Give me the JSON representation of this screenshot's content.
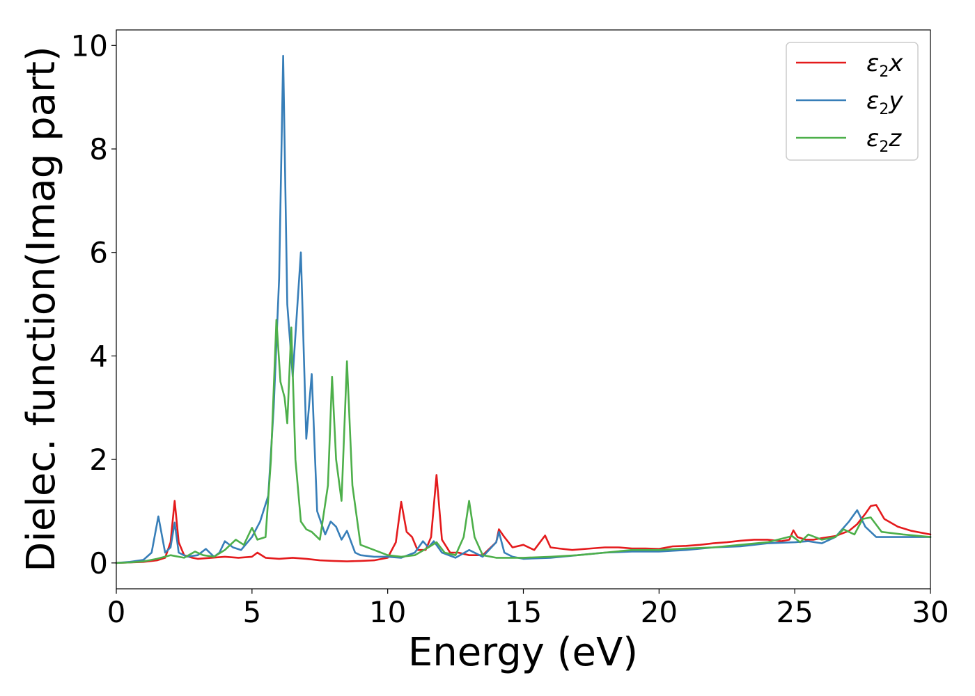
{
  "chart_data": {
    "type": "line",
    "title": "",
    "xlabel": "Energy (eV)",
    "ylabel": "Dielec. function(Imag part)",
    "xlim": [
      0,
      30
    ],
    "ylim": [
      -0.5,
      10.3
    ],
    "xticks": [
      0,
      5,
      10,
      15,
      20,
      25,
      30
    ],
    "yticks": [
      0,
      2,
      4,
      6,
      8,
      10
    ],
    "grid": false,
    "legend_position": "top-right",
    "series": [
      {
        "name": "ε2x",
        "color": "#e41a1c",
        "x": [
          0,
          0.5,
          1.0,
          1.5,
          1.8,
          2.0,
          2.15,
          2.3,
          2.5,
          2.8,
          3.0,
          3.5,
          4.0,
          4.5,
          5.0,
          5.2,
          5.5,
          6.0,
          6.5,
          7.0,
          7.5,
          8.0,
          8.5,
          9.0,
          9.5,
          10.0,
          10.3,
          10.5,
          10.7,
          10.9,
          11.1,
          11.4,
          11.6,
          11.8,
          12.0,
          12.3,
          12.6,
          13.0,
          13.5,
          14.0,
          14.1,
          14.3,
          14.6,
          15.0,
          15.4,
          15.8,
          16.0,
          16.3,
          16.8,
          17.5,
          18.0,
          18.5,
          19.0,
          19.5,
          20.0,
          20.5,
          21.0,
          21.5,
          22.0,
          22.5,
          23.0,
          23.5,
          24.0,
          24.5,
          24.8,
          24.95,
          25.1,
          25.4,
          25.7,
          26.0,
          26.5,
          27.0,
          27.3,
          27.6,
          27.8,
          28.0,
          28.3,
          28.8,
          29.3,
          30.0
        ],
        "y": [
          0,
          0.01,
          0.02,
          0.05,
          0.1,
          0.4,
          1.2,
          0.4,
          0.15,
          0.1,
          0.08,
          0.1,
          0.12,
          0.1,
          0.12,
          0.2,
          0.1,
          0.08,
          0.1,
          0.08,
          0.05,
          0.04,
          0.03,
          0.04,
          0.05,
          0.1,
          0.4,
          1.18,
          0.6,
          0.5,
          0.25,
          0.25,
          0.5,
          1.7,
          0.45,
          0.2,
          0.2,
          0.15,
          0.15,
          0.4,
          0.65,
          0.5,
          0.3,
          0.35,
          0.25,
          0.53,
          0.3,
          0.28,
          0.25,
          0.28,
          0.3,
          0.3,
          0.28,
          0.28,
          0.27,
          0.32,
          0.33,
          0.35,
          0.38,
          0.4,
          0.43,
          0.45,
          0.45,
          0.42,
          0.45,
          0.63,
          0.5,
          0.45,
          0.45,
          0.48,
          0.52,
          0.62,
          0.75,
          0.95,
          1.1,
          1.12,
          0.85,
          0.7,
          0.62,
          0.55
        ]
      },
      {
        "name": "ε2y",
        "color": "#377eb8",
        "x": [
          0,
          0.5,
          1.0,
          1.3,
          1.55,
          1.8,
          2.0,
          2.15,
          2.3,
          2.6,
          3.0,
          3.3,
          3.6,
          3.8,
          4.0,
          4.3,
          4.6,
          5.0,
          5.3,
          5.6,
          5.8,
          6.0,
          6.15,
          6.3,
          6.5,
          6.8,
          7.0,
          7.2,
          7.4,
          7.7,
          7.9,
          8.1,
          8.3,
          8.5,
          8.8,
          9.0,
          9.5,
          10.0,
          10.5,
          11.0,
          11.3,
          11.5,
          11.7,
          12.0,
          12.5,
          13.0,
          13.5,
          14.0,
          14.1,
          14.3,
          14.6,
          15.0,
          16.0,
          17.0,
          18.0,
          19.0,
          20.0,
          21.0,
          22.0,
          23.0,
          24.0,
          25.0,
          25.5,
          26.0,
          26.5,
          27.0,
          27.3,
          27.6,
          28.0,
          29.0,
          30.0
        ],
        "y": [
          0,
          0.02,
          0.06,
          0.2,
          0.9,
          0.2,
          0.3,
          0.78,
          0.2,
          0.12,
          0.15,
          0.27,
          0.12,
          0.2,
          0.42,
          0.3,
          0.25,
          0.5,
          0.8,
          1.3,
          3.0,
          5.5,
          9.8,
          5.0,
          3.6,
          6.0,
          2.4,
          3.65,
          1.0,
          0.55,
          0.8,
          0.7,
          0.45,
          0.62,
          0.2,
          0.15,
          0.12,
          0.12,
          0.1,
          0.2,
          0.42,
          0.3,
          0.42,
          0.2,
          0.1,
          0.25,
          0.12,
          0.4,
          0.6,
          0.2,
          0.12,
          0.08,
          0.1,
          0.15,
          0.2,
          0.22,
          0.22,
          0.25,
          0.3,
          0.32,
          0.38,
          0.4,
          0.42,
          0.38,
          0.5,
          0.8,
          1.02,
          0.7,
          0.5,
          0.5,
          0.5
        ]
      },
      {
        "name": "ε2z",
        "color": "#4daf4a",
        "x": [
          0,
          0.5,
          1.0,
          1.5,
          2.0,
          2.5,
          2.9,
          3.2,
          3.6,
          4.0,
          4.4,
          4.7,
          5.0,
          5.2,
          5.5,
          5.7,
          5.9,
          6.05,
          6.2,
          6.3,
          6.45,
          6.6,
          6.8,
          7.0,
          7.2,
          7.5,
          7.8,
          7.95,
          8.1,
          8.3,
          8.5,
          8.7,
          9.0,
          9.5,
          10.0,
          10.5,
          11.0,
          11.5,
          11.8,
          12.1,
          12.5,
          12.8,
          13.0,
          13.2,
          13.5,
          14.0,
          15.0,
          16.0,
          17.0,
          18.0,
          19.0,
          20.0,
          21.0,
          22.0,
          23.0,
          24.0,
          24.9,
          25.2,
          25.5,
          26.0,
          26.5,
          26.8,
          27.2,
          27.5,
          27.8,
          28.2,
          29.0,
          30.0
        ],
        "y": [
          0,
          0.01,
          0.03,
          0.08,
          0.15,
          0.1,
          0.22,
          0.15,
          0.12,
          0.25,
          0.45,
          0.35,
          0.68,
          0.45,
          0.5,
          2.0,
          4.7,
          3.5,
          3.2,
          2.7,
          4.55,
          2.0,
          0.8,
          0.65,
          0.6,
          0.45,
          1.5,
          3.6,
          2.0,
          1.2,
          3.9,
          1.5,
          0.35,
          0.25,
          0.15,
          0.12,
          0.15,
          0.3,
          0.4,
          0.2,
          0.15,
          0.5,
          1.2,
          0.5,
          0.15,
          0.1,
          0.1,
          0.12,
          0.15,
          0.2,
          0.25,
          0.25,
          0.28,
          0.3,
          0.35,
          0.4,
          0.52,
          0.4,
          0.55,
          0.45,
          0.5,
          0.65,
          0.55,
          0.85,
          0.88,
          0.6,
          0.55,
          0.5
        ]
      }
    ]
  }
}
